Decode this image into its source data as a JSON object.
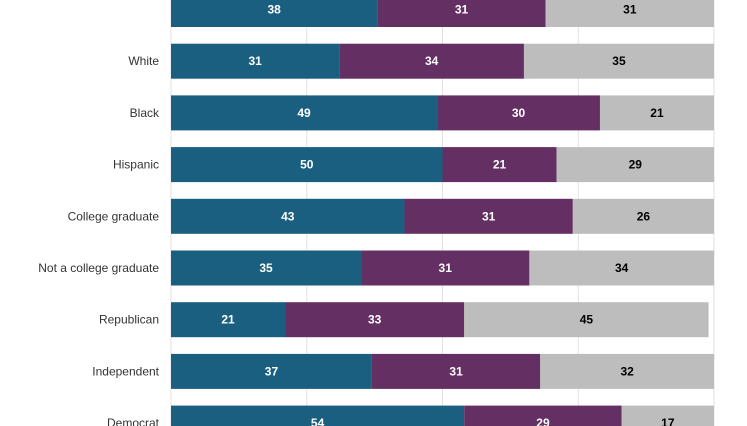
{
  "chart_data": {
    "type": "bar",
    "orientation": "horizontal",
    "stacked": true,
    "grid": true,
    "xlim": [
      0,
      100
    ],
    "categories": [
      "",
      "White",
      "Black",
      "Hispanic",
      "College graduate",
      "Not a college graduate",
      "Republican",
      "Independent",
      "Democrat"
    ],
    "series": [
      {
        "values": [
          38,
          31,
          49,
          50,
          43,
          35,
          21,
          37,
          54
        ]
      },
      {
        "values": [
          31,
          34,
          30,
          21,
          31,
          31,
          33,
          31,
          29
        ]
      },
      {
        "values": [
          31,
          35,
          21,
          29,
          26,
          34,
          45,
          32,
          17
        ]
      }
    ],
    "colors": [
      "#1a5f80",
      "#642f63",
      "#bdbdbd"
    ],
    "label_colors": [
      "#ffffff",
      "#ffffff",
      "#000000"
    ]
  }
}
